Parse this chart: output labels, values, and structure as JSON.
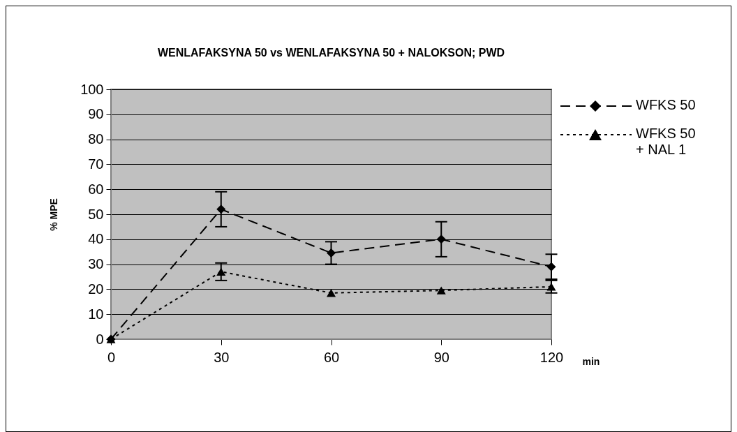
{
  "chart_data": {
    "type": "line",
    "title": "WENLAFAKSYNA 50 vs WENLAFAKSYNA 50 + NALOKSON; PWD",
    "xlabel": "min",
    "ylabel": "% MPE",
    "x": [
      0,
      30,
      60,
      90,
      120
    ],
    "xlim": [
      0,
      120
    ],
    "xticks": [
      0,
      30,
      60,
      90,
      120
    ],
    "ylim": [
      0,
      100
    ],
    "yticks": [
      0,
      10,
      20,
      30,
      40,
      50,
      60,
      70,
      80,
      90,
      100
    ],
    "grid": "y",
    "legend": "right",
    "series": [
      {
        "name": "WFKS 50",
        "color": "#000000",
        "marker": "diamond",
        "line_style": "dashed",
        "values": [
          0,
          52,
          34.5,
          40,
          29
        ],
        "errors": [
          null,
          7,
          4.5,
          7,
          5
        ]
      },
      {
        "name": "WFKS 50 + NAL 1",
        "color": "#000000",
        "marker": "triangle",
        "line_style": "dotted",
        "values": [
          0,
          27,
          18.5,
          19.5,
          21
        ],
        "errors": [
          null,
          3.5,
          null,
          null,
          2.5
        ]
      }
    ]
  }
}
